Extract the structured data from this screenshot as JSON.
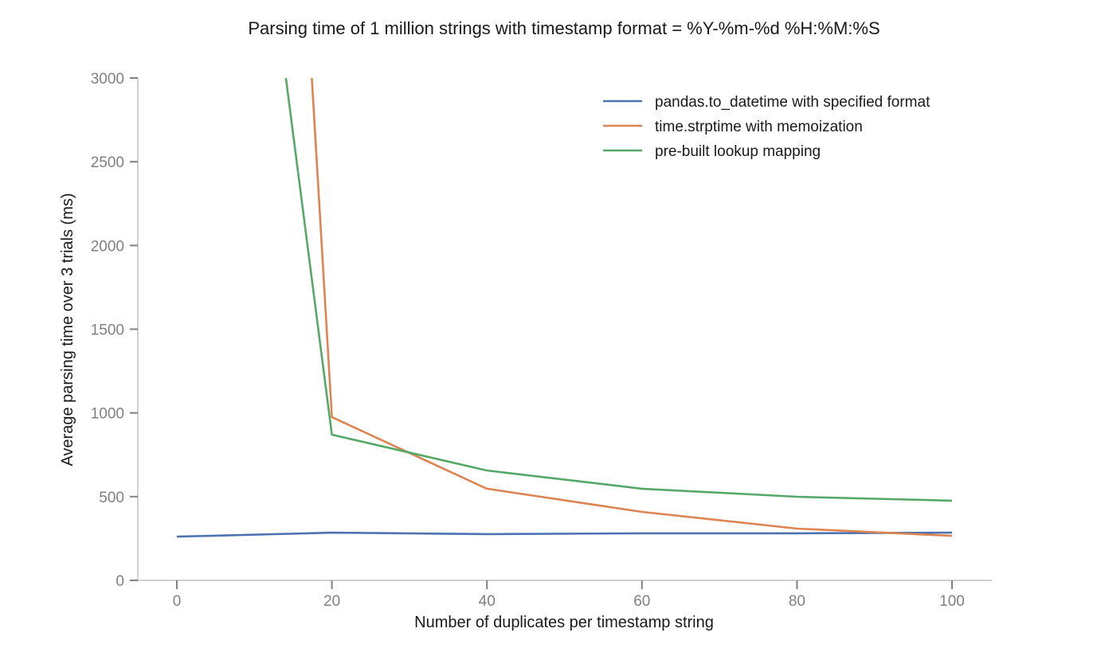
{
  "chart_data": {
    "type": "line",
    "title": "Parsing time of 1 million strings with timestamp format = %Y-%m-%d %H:%M:%S",
    "xlabel": "Number of duplicates per timestamp string",
    "ylabel": "Average parsing time over 3 trials (ms)",
    "xlim": [
      -5,
      105
    ],
    "ylim": [
      0,
      3000
    ],
    "xticks": [
      0,
      20,
      40,
      60,
      80,
      100
    ],
    "yticks": [
      0,
      500,
      1000,
      1500,
      2000,
      2500,
      3000
    ],
    "grid": false,
    "legend_position": "upper right",
    "series": [
      {
        "name": "pandas.to_datetime with specified format",
        "color": "#4c72b0",
        "x": [
          0,
          20,
          40,
          60,
          80,
          100
        ],
        "values": [
          261,
          285,
          276,
          281,
          281,
          285
        ]
      },
      {
        "name": "time.strptime with memoization",
        "color": "#dd8452",
        "x": [
          10,
          20,
          40,
          60,
          80,
          100
        ],
        "values": [
          8800,
          975,
          547,
          409,
          309,
          266
        ]
      },
      {
        "name": "pre-built lookup mapping",
        "color": "#55a868",
        "x": [
          10,
          20,
          40,
          60,
          80,
          100
        ],
        "values": [
          4460,
          870,
          656,
          547,
          499,
          476
        ]
      }
    ]
  },
  "layout": {
    "axis_color": "#d0d0d0",
    "tick_color": "#808080"
  }
}
